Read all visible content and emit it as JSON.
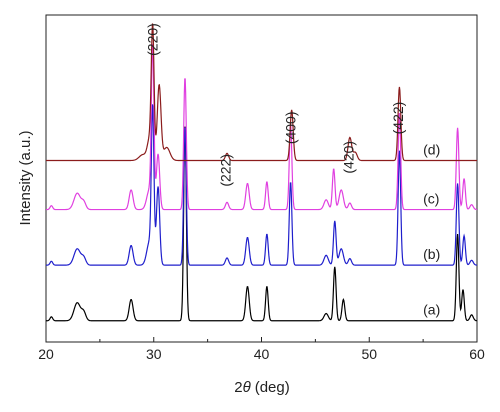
{
  "chart_data": {
    "type": "line",
    "title": "",
    "xlabel": "2θ (deg)",
    "xlabel_parts": {
      "theta": "θ",
      "unit": "(deg)",
      "prefix": "2"
    },
    "ylabel": "Intensity (a.u.)",
    "xlim": [
      20,
      60
    ],
    "xticks": [
      20,
      30,
      40,
      50,
      60
    ],
    "xtick_labels": [
      "20",
      "30",
      "40",
      "50",
      "60"
    ],
    "ylim": [
      0,
      10
    ],
    "grid": false,
    "legend": "none",
    "peak_labels": [
      {
        "text": "(220)",
        "x": 30.0,
        "y": 9.25
      },
      {
        "text": "(222)",
        "x": 36.8,
        "y": 5.25
      },
      {
        "text": "(400)",
        "x": 42.8,
        "y": 6.55
      },
      {
        "text": "(420)",
        "x": 48.2,
        "y": 5.65
      },
      {
        "text": "(422)",
        "x": 52.8,
        "y": 6.85
      }
    ],
    "series": [
      {
        "label": "(a)",
        "color": "#000000",
        "baseline": 0.65,
        "label_x": 55.0,
        "peaks": [
          [
            20.5,
            0.12,
            0.12
          ],
          [
            22.9,
            0.55,
            0.3
          ],
          [
            23.5,
            0.25,
            0.2
          ],
          [
            27.9,
            0.65,
            0.18
          ],
          [
            32.9,
            6.0,
            0.12
          ],
          [
            38.7,
            1.05,
            0.16
          ],
          [
            40.5,
            1.05,
            0.12
          ],
          [
            46.0,
            0.22,
            0.2
          ],
          [
            46.8,
            1.65,
            0.12
          ],
          [
            47.6,
            0.65,
            0.13
          ],
          [
            58.2,
            2.65,
            0.12
          ],
          [
            58.7,
            0.95,
            0.12
          ],
          [
            59.5,
            0.18,
            0.15
          ]
        ]
      },
      {
        "label": "(b)",
        "color": "#1f1fcc",
        "baseline": 2.35,
        "label_x": 55.0,
        "peaks": [
          [
            20.5,
            0.12,
            0.12
          ],
          [
            22.9,
            0.5,
            0.3
          ],
          [
            23.5,
            0.22,
            0.2
          ],
          [
            27.9,
            0.6,
            0.18
          ],
          [
            29.6,
            0.7,
            0.25
          ],
          [
            29.9,
            4.6,
            0.12
          ],
          [
            30.4,
            2.4,
            0.15
          ],
          [
            32.9,
            4.25,
            0.12
          ],
          [
            36.8,
            0.22,
            0.15
          ],
          [
            38.7,
            0.85,
            0.16
          ],
          [
            40.5,
            0.95,
            0.12
          ],
          [
            42.7,
            2.55,
            0.12
          ],
          [
            46.0,
            0.3,
            0.2
          ],
          [
            46.8,
            1.35,
            0.12
          ],
          [
            47.4,
            0.5,
            0.2
          ],
          [
            48.2,
            0.2,
            0.15
          ],
          [
            52.8,
            3.5,
            0.12
          ],
          [
            58.2,
            2.5,
            0.12
          ],
          [
            58.8,
            0.9,
            0.12
          ],
          [
            59.5,
            0.15,
            0.15
          ]
        ]
      },
      {
        "label": "(c)",
        "color": "#e040e0",
        "baseline": 4.05,
        "label_x": 55.0,
        "peaks": [
          [
            20.5,
            0.12,
            0.12
          ],
          [
            22.9,
            0.5,
            0.3
          ],
          [
            23.5,
            0.22,
            0.2
          ],
          [
            27.9,
            0.6,
            0.18
          ],
          [
            29.6,
            0.6,
            0.25
          ],
          [
            29.9,
            4.8,
            0.12
          ],
          [
            30.4,
            1.7,
            0.15
          ],
          [
            32.9,
            4.05,
            0.12
          ],
          [
            36.8,
            0.22,
            0.15
          ],
          [
            38.7,
            0.8,
            0.16
          ],
          [
            40.5,
            0.85,
            0.12
          ],
          [
            42.7,
            2.6,
            0.12
          ],
          [
            46.0,
            0.3,
            0.2
          ],
          [
            46.7,
            1.25,
            0.12
          ],
          [
            47.4,
            0.6,
            0.2
          ],
          [
            48.2,
            0.2,
            0.15
          ],
          [
            52.8,
            2.95,
            0.12
          ],
          [
            58.2,
            2.5,
            0.12
          ],
          [
            58.8,
            0.95,
            0.12
          ],
          [
            59.5,
            0.15,
            0.15
          ]
        ]
      },
      {
        "label": "(d)",
        "color": "#8b1c1c",
        "baseline": 5.55,
        "label_x": 55.0,
        "peaks": [
          [
            29.0,
            0.18,
            0.35
          ],
          [
            29.6,
            0.6,
            0.2
          ],
          [
            29.9,
            4.0,
            0.13
          ],
          [
            30.5,
            2.3,
            0.17
          ],
          [
            31.2,
            0.4,
            0.3
          ],
          [
            36.8,
            0.22,
            0.15
          ],
          [
            42.8,
            1.55,
            0.14
          ],
          [
            48.2,
            0.7,
            0.17
          ],
          [
            48.7,
            0.25,
            0.18
          ],
          [
            52.8,
            2.25,
            0.13
          ]
        ]
      }
    ]
  }
}
